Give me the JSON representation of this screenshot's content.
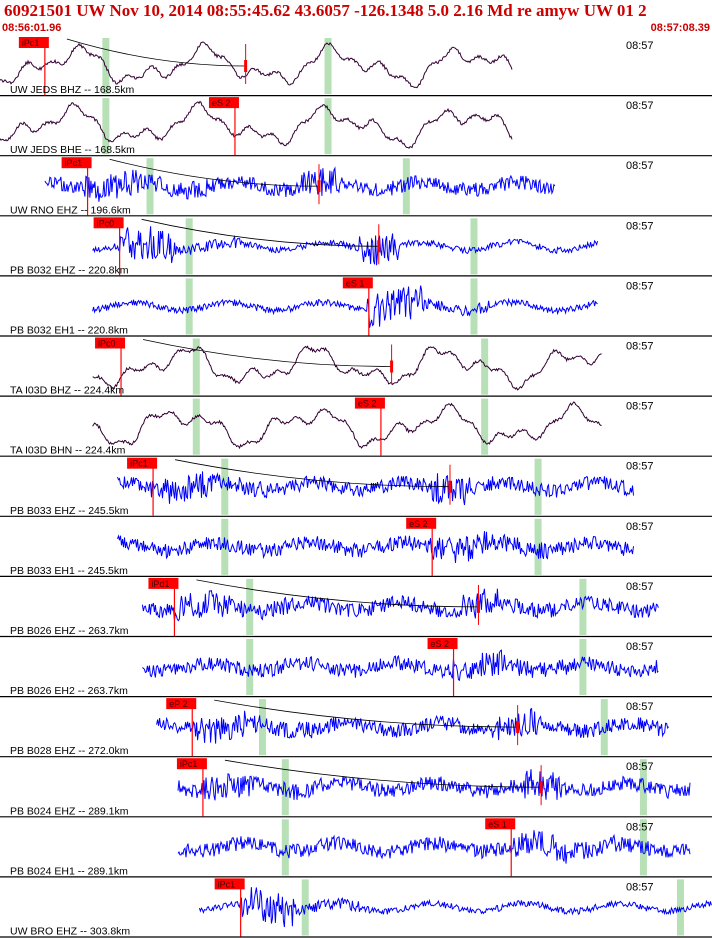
{
  "header": {
    "title": "60921501 UW Nov 10, 2014 08:55:45.62    43.6057 -126.1348  5.0 2.16 Md re amyw UW 01   2",
    "time_start": "08:56:01.96",
    "time_end": "08:57:08.39"
  },
  "colors": {
    "title": "#cc0000",
    "waveform_blue": "#0000ff",
    "waveform_dark": "#330033",
    "pick": "#ff0000",
    "window_marker": "#b7e0b7",
    "separator": "#000000"
  },
  "chart_data": {
    "type": "line",
    "title": "60921501 UW Nov 10, 2014 08:55:45.62    43.6057 -126.1348  5.0 2.16 Md re amyw UW 01   2",
    "x_range": [
      "08:56:01.96",
      "08:57:08.39"
    ],
    "traces": [
      {
        "label": "UW JEDS BHZ -- 168.5km",
        "time_label": "08:57",
        "pick": "iPc1",
        "color": "dark",
        "style": "long",
        "start": 0.0,
        "end": 0.72,
        "pick_pos": 0.063,
        "second": 0.345,
        "win": [
          0.148,
          0.46
        ]
      },
      {
        "label": "UW JEDS BHE -- 168.5km",
        "time_label": "08:57",
        "pick": "eS 2",
        "color": "dark",
        "style": "long",
        "start": 0.0,
        "end": 0.72,
        "pick_pos": 0.33,
        "second": null,
        "win": [
          0.148,
          0.46
        ]
      },
      {
        "label": "UW RNO EHZ -- 196.6km",
        "time_label": "08:57",
        "pick": "iPc1",
        "color": "blue",
        "style": "mixed",
        "start": 0.063,
        "end": 0.78,
        "pick_pos": 0.123,
        "second": 0.448,
        "win": [
          0.21,
          0.57
        ]
      },
      {
        "label": "PB B032 EHZ -- 220.8km",
        "time_label": "08:57",
        "pick": "iPc0",
        "color": "blue",
        "style": "burst",
        "start": 0.13,
        "end": 0.84,
        "pick_pos": 0.168,
        "second": 0.532,
        "win": [
          0.265,
          0.665
        ]
      },
      {
        "label": "PB B032 EH1 -- 220.8km",
        "time_label": "08:57",
        "pick": "eS 1",
        "color": "blue",
        "style": "burst",
        "start": 0.13,
        "end": 0.84,
        "pick_pos": 0.518,
        "second": null,
        "win": [
          0.265,
          0.665
        ]
      },
      {
        "label": "TA I03D BHZ -- 224.4km",
        "time_label": "08:57",
        "pick": "iPc0",
        "color": "dark",
        "style": "long",
        "start": 0.13,
        "end": 0.845,
        "pick_pos": 0.17,
        "second": 0.55,
        "win": [
          0.275,
          0.68
        ]
      },
      {
        "label": "TA I03D BHN -- 224.4km",
        "time_label": "08:57",
        "pick": "eS 2",
        "color": "dark",
        "style": "long",
        "start": 0.13,
        "end": 0.845,
        "pick_pos": 0.535,
        "second": null,
        "win": [
          0.275,
          0.68
        ]
      },
      {
        "label": "PB B033 EHZ -- 245.5km",
        "time_label": "08:57",
        "pick": "iPc1",
        "color": "blue",
        "style": "noise",
        "start": 0.165,
        "end": 0.89,
        "pick_pos": 0.215,
        "second": 0.632,
        "win": [
          0.315,
          0.755
        ]
      },
      {
        "label": "PB B033 EH1 -- 245.5km",
        "time_label": "08:57",
        "pick": "eS 2",
        "color": "blue",
        "style": "noise",
        "start": 0.165,
        "end": 0.89,
        "pick_pos": 0.607,
        "second": null,
        "win": [
          0.315,
          0.755
        ]
      },
      {
        "label": "PB B026 EHZ -- 263.7km",
        "time_label": "08:57",
        "pick": "iPd1",
        "color": "blue",
        "style": "noise",
        "start": 0.2,
        "end": 0.925,
        "pick_pos": 0.245,
        "second": 0.672,
        "win": [
          0.35,
          0.818
        ]
      },
      {
        "label": "PB B026 EH2 -- 263.7km",
        "time_label": "08:57",
        "pick": "eS 2",
        "color": "blue",
        "style": "noise",
        "start": 0.2,
        "end": 0.925,
        "pick_pos": 0.637,
        "second": null,
        "win": [
          0.35,
          0.818
        ]
      },
      {
        "label": "PB B028 EHZ -- 272.0km",
        "time_label": "08:57",
        "pick": "eP 2",
        "color": "blue",
        "style": "noise",
        "start": 0.22,
        "end": 0.94,
        "pick_pos": 0.27,
        "second": 0.727,
        "win": [
          0.368,
          0.848
        ]
      },
      {
        "label": "PB B024 EHZ -- 289.1km",
        "time_label": "08:57",
        "pick": "iPc1",
        "color": "blue",
        "style": "noise",
        "start": 0.25,
        "end": 0.97,
        "pick_pos": 0.285,
        "second": 0.76,
        "win": [
          0.4,
          0.903
        ]
      },
      {
        "label": "PB B024 EH1 -- 289.1km",
        "time_label": "08:57",
        "pick": "eS 1",
        "color": "blue",
        "style": "noise",
        "start": 0.25,
        "end": 0.97,
        "pick_pos": 0.718,
        "second": null,
        "win": [
          0.4,
          0.903
        ]
      },
      {
        "label": "UW BRO EHZ -- 303.8km",
        "time_label": "08:57",
        "pick": "iPc1",
        "color": "blue",
        "style": "burst",
        "start": 0.28,
        "end": 1.0,
        "pick_pos": 0.338,
        "second": null,
        "win": [
          0.428,
          0.955
        ]
      }
    ]
  }
}
